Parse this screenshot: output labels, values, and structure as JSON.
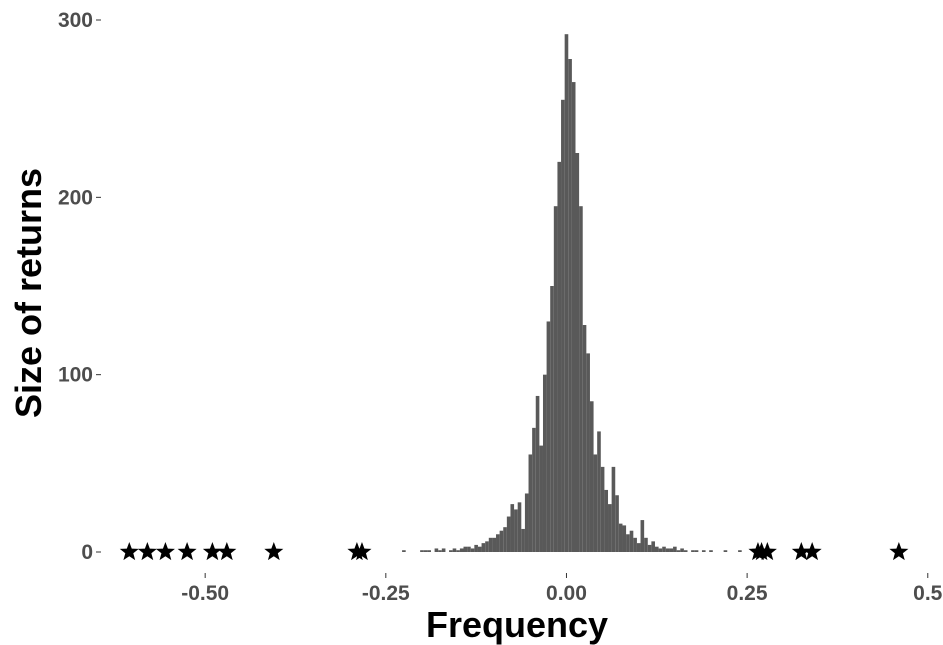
{
  "chart_data": {
    "type": "bar",
    "subtype": "histogram-with-extreme-markers",
    "xlabel": "Frequency",
    "ylabel": "Size of returns",
    "xlim": [
      -0.64,
      0.51
    ],
    "ylim": [
      0,
      300
    ],
    "x_ticks": [
      {
        "value": -0.5,
        "label": "-0.50"
      },
      {
        "value": -0.25,
        "label": "-0.25"
      },
      {
        "value": 0.0,
        "label": "0.00"
      },
      {
        "value": 0.25,
        "label": "0.25"
      },
      {
        "value": 0.5,
        "label": "0.5"
      }
    ],
    "y_ticks": [
      {
        "value": 0,
        "label": "0"
      },
      {
        "value": 100,
        "label": "100"
      },
      {
        "value": 200,
        "label": "200"
      },
      {
        "value": 300,
        "label": "300"
      }
    ],
    "grid": false,
    "bar_color": "#595959",
    "marker_color": "#000000",
    "bin_width": 0.005,
    "bins": [
      {
        "x": -0.225,
        "count": 1
      },
      {
        "x": -0.2,
        "count": 1
      },
      {
        "x": -0.195,
        "count": 1
      },
      {
        "x": -0.19,
        "count": 1
      },
      {
        "x": -0.18,
        "count": 2
      },
      {
        "x": -0.175,
        "count": 1
      },
      {
        "x": -0.17,
        "count": 2
      },
      {
        "x": -0.16,
        "count": 1
      },
      {
        "x": -0.155,
        "count": 2
      },
      {
        "x": -0.15,
        "count": 1
      },
      {
        "x": -0.145,
        "count": 2
      },
      {
        "x": -0.14,
        "count": 3
      },
      {
        "x": -0.135,
        "count": 3
      },
      {
        "x": -0.13,
        "count": 2
      },
      {
        "x": -0.125,
        "count": 4
      },
      {
        "x": -0.12,
        "count": 3
      },
      {
        "x": -0.115,
        "count": 5
      },
      {
        "x": -0.11,
        "count": 6
      },
      {
        "x": -0.105,
        "count": 8
      },
      {
        "x": -0.1,
        "count": 8
      },
      {
        "x": -0.095,
        "count": 10
      },
      {
        "x": -0.09,
        "count": 12
      },
      {
        "x": -0.085,
        "count": 14
      },
      {
        "x": -0.08,
        "count": 20
      },
      {
        "x": -0.075,
        "count": 27
      },
      {
        "x": -0.07,
        "count": 24
      },
      {
        "x": -0.065,
        "count": 28
      },
      {
        "x": -0.06,
        "count": 13
      },
      {
        "x": -0.055,
        "count": 33
      },
      {
        "x": -0.05,
        "count": 55
      },
      {
        "x": -0.045,
        "count": 70
      },
      {
        "x": -0.04,
        "count": 88
      },
      {
        "x": -0.035,
        "count": 60
      },
      {
        "x": -0.03,
        "count": 100
      },
      {
        "x": -0.025,
        "count": 130
      },
      {
        "x": -0.02,
        "count": 150
      },
      {
        "x": -0.015,
        "count": 195
      },
      {
        "x": -0.01,
        "count": 220
      },
      {
        "x": -0.005,
        "count": 255
      },
      {
        "x": 0.0,
        "count": 292
      },
      {
        "x": 0.005,
        "count": 278
      },
      {
        "x": 0.01,
        "count": 265
      },
      {
        "x": 0.015,
        "count": 225
      },
      {
        "x": 0.02,
        "count": 195
      },
      {
        "x": 0.025,
        "count": 128
      },
      {
        "x": 0.03,
        "count": 112
      },
      {
        "x": 0.035,
        "count": 85
      },
      {
        "x": 0.04,
        "count": 55
      },
      {
        "x": 0.045,
        "count": 68
      },
      {
        "x": 0.05,
        "count": 48
      },
      {
        "x": 0.055,
        "count": 35
      },
      {
        "x": 0.06,
        "count": 27
      },
      {
        "x": 0.065,
        "count": 48
      },
      {
        "x": 0.07,
        "count": 32
      },
      {
        "x": 0.075,
        "count": 16
      },
      {
        "x": 0.08,
        "count": 15
      },
      {
        "x": 0.085,
        "count": 10
      },
      {
        "x": 0.09,
        "count": 12
      },
      {
        "x": 0.095,
        "count": 8
      },
      {
        "x": 0.1,
        "count": 5
      },
      {
        "x": 0.105,
        "count": 18
      },
      {
        "x": 0.11,
        "count": 8
      },
      {
        "x": 0.115,
        "count": 4
      },
      {
        "x": 0.12,
        "count": 6
      },
      {
        "x": 0.125,
        "count": 3
      },
      {
        "x": 0.13,
        "count": 2
      },
      {
        "x": 0.135,
        "count": 3
      },
      {
        "x": 0.14,
        "count": 2
      },
      {
        "x": 0.145,
        "count": 2
      },
      {
        "x": 0.15,
        "count": 3
      },
      {
        "x": 0.155,
        "count": 1
      },
      {
        "x": 0.16,
        "count": 2
      },
      {
        "x": 0.165,
        "count": 1
      },
      {
        "x": 0.175,
        "count": 1
      },
      {
        "x": 0.18,
        "count": 1
      },
      {
        "x": 0.19,
        "count": 1
      },
      {
        "x": 0.2,
        "count": 1
      },
      {
        "x": 0.22,
        "count": 1
      },
      {
        "x": 0.24,
        "count": 1
      }
    ],
    "extreme_markers": [
      {
        "x": -0.605,
        "y": 0
      },
      {
        "x": -0.58,
        "y": 0
      },
      {
        "x": -0.555,
        "y": 0
      },
      {
        "x": -0.525,
        "y": 0
      },
      {
        "x": -0.49,
        "y": 0
      },
      {
        "x": -0.47,
        "y": 0
      },
      {
        "x": -0.405,
        "y": 0
      },
      {
        "x": -0.29,
        "y": 0
      },
      {
        "x": -0.283,
        "y": 0
      },
      {
        "x": 0.265,
        "y": 0
      },
      {
        "x": 0.27,
        "y": 0
      },
      {
        "x": 0.278,
        "y": 0
      },
      {
        "x": 0.325,
        "y": 0
      },
      {
        "x": 0.34,
        "y": 0
      },
      {
        "x": 0.46,
        "y": 0
      }
    ]
  }
}
